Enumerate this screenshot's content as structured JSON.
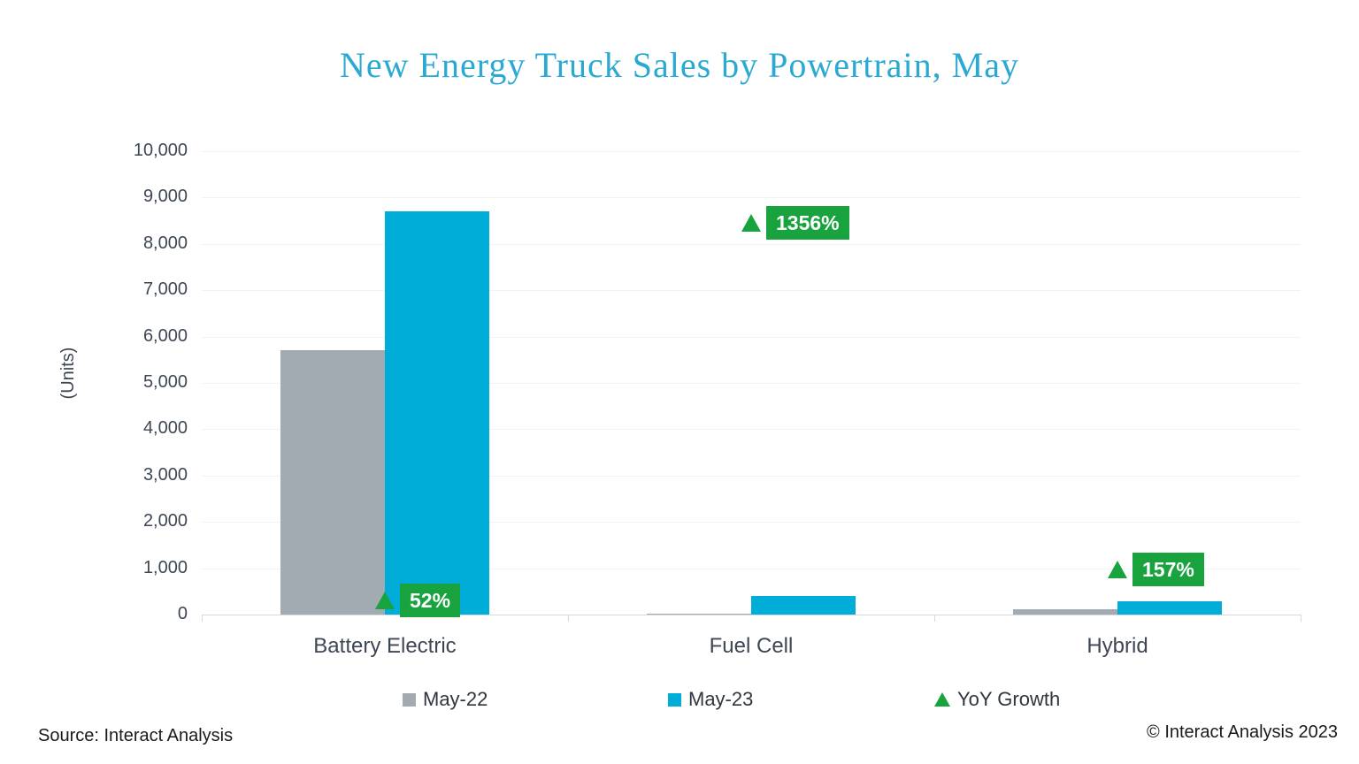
{
  "page": {
    "source_note": "Source: Interact Analysis",
    "copyright": "© Interact Analysis 2023"
  },
  "chart_data": {
    "type": "bar",
    "title": "New Energy Truck Sales by Powertrain, May",
    "ylabel": "(Units)",
    "ylim": [
      0,
      10000
    ],
    "ytick_interval": 1000,
    "ytick_labels": [
      "0",
      "1,000",
      "2,000",
      "3,000",
      "4,000",
      "5,000",
      "6,000",
      "7,000",
      "8,000",
      "9,000",
      "10,000"
    ],
    "grid": "horizontal-light",
    "legend_position": "bottom",
    "categories": [
      "Battery Electric",
      "Fuel Cell",
      "Hybrid"
    ],
    "series": [
      {
        "name": "May-22",
        "color": "#a1abb1",
        "values": [
          5700,
          27,
          110
        ]
      },
      {
        "name": "May-23",
        "color": "#00add9",
        "values": [
          8700,
          393,
          283
        ]
      }
    ],
    "growth_series": {
      "name": "YoY Growth",
      "color": "#18a33e",
      "marker": "triangle-up",
      "labels": [
        "52%",
        "1356%",
        "157%"
      ],
      "label_anchor_units": [
        300,
        8450,
        975
      ]
    },
    "colors": {
      "title": "#2aa9d2",
      "axis_text": "#3d4754",
      "gridline": "#f2f2f2",
      "axis_line": "#d9d9d9"
    }
  }
}
